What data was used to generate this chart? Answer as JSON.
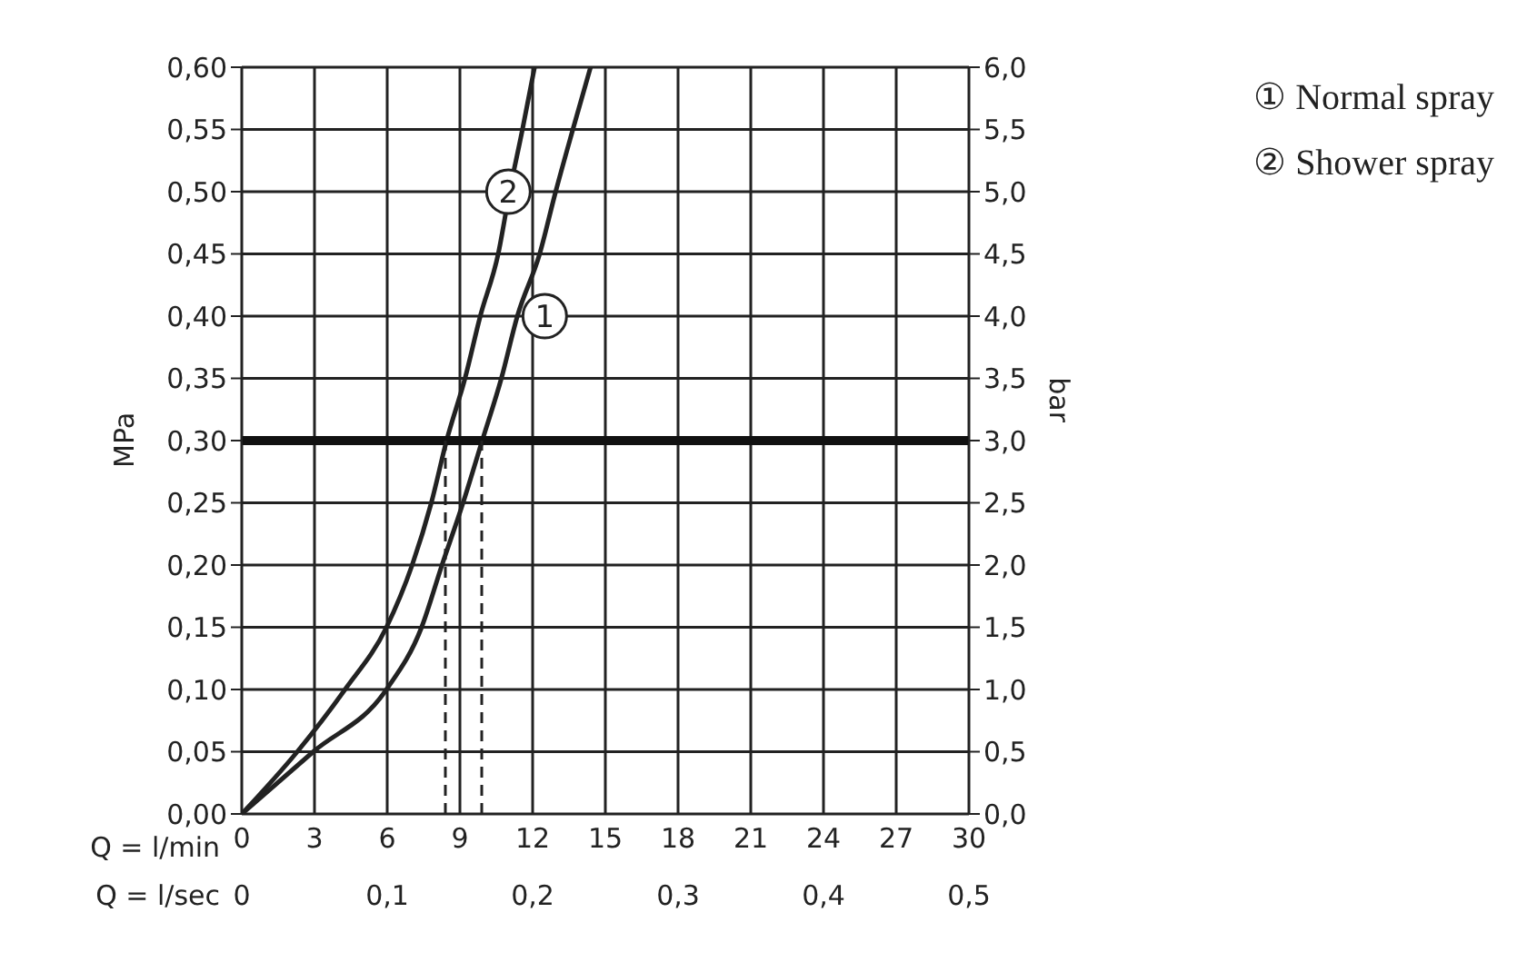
{
  "chart_data": {
    "type": "line",
    "xlabel": "Q = l/min",
    "x2label": "Q = l/sec",
    "ylabel": "MPa",
    "y2label": "bar",
    "xlim": [
      0,
      30
    ],
    "xticks": [
      0,
      3,
      6,
      9,
      12,
      15,
      18,
      21,
      24,
      27,
      30
    ],
    "x2lim": [
      0,
      0.5
    ],
    "x2ticks": [
      0,
      {
        "value": 0.1,
        "label": "0,1"
      },
      {
        "value": 0.2,
        "label": "0,2"
      },
      {
        "value": 0.3,
        "label": "0,3"
      },
      {
        "value": 0.4,
        "label": "0,4"
      },
      {
        "value": 0.5,
        "label": "0,5"
      }
    ],
    "ylim": [
      0,
      0.6
    ],
    "yticks": [
      {
        "value": 0,
        "label": "0,00"
      },
      {
        "value": 0.05,
        "label": "0,05"
      },
      {
        "value": 0.1,
        "label": "0,10"
      },
      {
        "value": 0.15,
        "label": "0,15"
      },
      {
        "value": 0.2,
        "label": "0,20"
      },
      {
        "value": 0.25,
        "label": "0,25"
      },
      {
        "value": 0.3,
        "label": "0,30"
      },
      {
        "value": 0.35,
        "label": "0,35"
      },
      {
        "value": 0.4,
        "label": "0,40"
      },
      {
        "value": 0.45,
        "label": "0,45"
      },
      {
        "value": 0.5,
        "label": "0,50"
      },
      {
        "value": 0.55,
        "label": "0,55"
      },
      {
        "value": 0.6,
        "label": "0,60"
      }
    ],
    "y2lim": [
      0,
      6
    ],
    "y2ticks": [
      {
        "value": 0,
        "label": "0,0"
      },
      {
        "value": 0.5,
        "label": "0,5"
      },
      {
        "value": 1,
        "label": "1,0"
      },
      {
        "value": 1.5,
        "label": "1,5"
      },
      {
        "value": 2,
        "label": "2,0"
      },
      {
        "value": 2.5,
        "label": "2,5"
      },
      {
        "value": 3,
        "label": "3,0"
      },
      {
        "value": 3.5,
        "label": "3,5"
      },
      {
        "value": 4,
        "label": "4,0"
      },
      {
        "value": 4.5,
        "label": "4,5"
      },
      {
        "value": 5,
        "label": "5,0"
      },
      {
        "value": 5.5,
        "label": "5,5"
      },
      {
        "value": 6,
        "label": "6,0"
      }
    ],
    "series": [
      {
        "name": "① Normal spray",
        "color": "#222222",
        "x": [
          0,
          2.95,
          5.97,
          7.42,
          8.26,
          9.13,
          9.92,
          10.71,
          11.37,
          12.29,
          12.95,
          13.66,
          14.39
        ],
        "values": [
          0,
          0.05,
          0.1,
          0.15,
          0.2,
          0.25,
          0.3,
          0.35,
          0.4,
          0.45,
          0.5,
          0.55,
          0.6
        ]
      },
      {
        "name": "② Shower spray",
        "color": "#222222",
        "x": [
          0,
          2.29,
          4.26,
          5.97,
          7.03,
          7.82,
          8.45,
          9.21,
          9.84,
          10.58,
          11.05,
          11.58,
          12.08
        ],
        "values": [
          0,
          0.05,
          0.1,
          0.15,
          0.2,
          0.25,
          0.3,
          0.35,
          0.4,
          0.45,
          0.5,
          0.55,
          0.6
        ]
      }
    ],
    "ref_lines": [
      {
        "axis": "y",
        "value": 0.3,
        "color": "#111111",
        "line_style": "solid"
      },
      {
        "axis": "x",
        "value": 8.4,
        "color": "#222222",
        "line_style": "dashed"
      },
      {
        "axis": "x",
        "value": 9.9,
        "color": "#222222",
        "line_style": "dashed"
      }
    ],
    "annotations": [
      {
        "text": "1",
        "x": 12.5,
        "y": 0.4
      },
      {
        "text": "2",
        "x": 11.0,
        "y": 0.5
      }
    ],
    "grid": true,
    "legend": "top right",
    "marker": "none",
    "line_style": "solid"
  }
}
